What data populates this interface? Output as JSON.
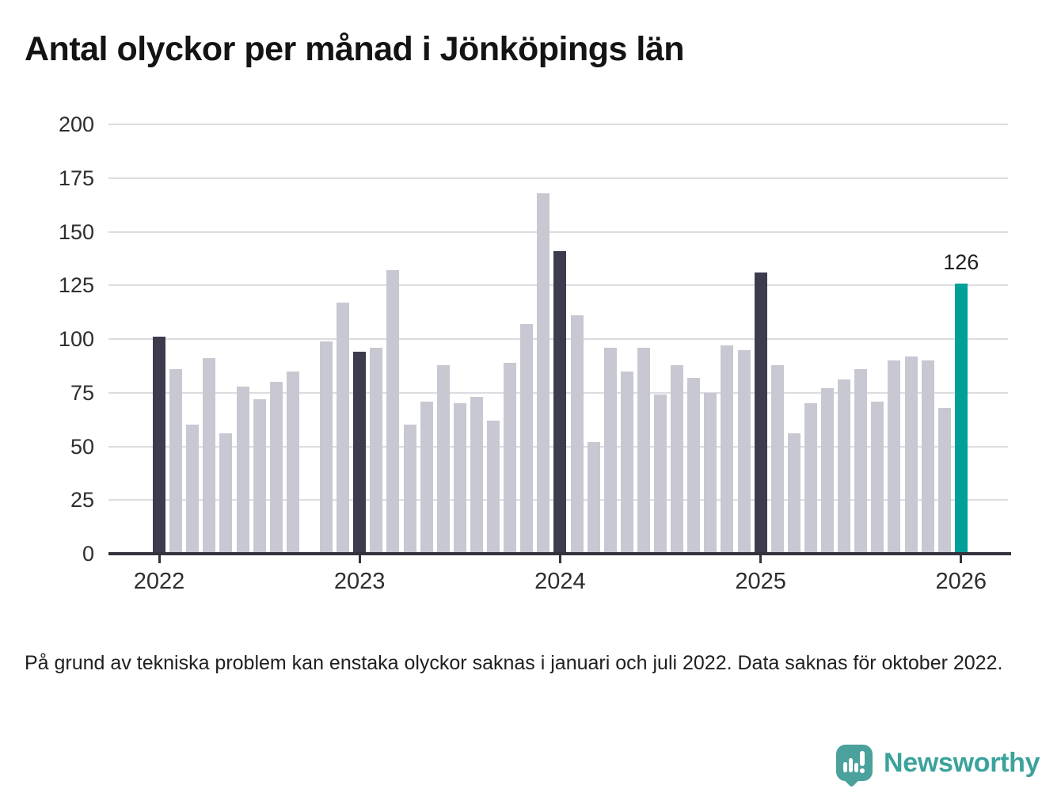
{
  "title": "Antal olyckor per månad i Jönköpings län",
  "footnote": "På grund av tekniska problem kan enstaka olyckor saknas i januari och juli 2022. Data saknas för oktober 2022.",
  "logo": {
    "text": "Newsworthy",
    "icon": "newsworthy-speech-bubble-barchart-icon"
  },
  "colors": {
    "bar_default": "#c8c8d2",
    "bar_january": "#3c3c4e",
    "bar_current": "#00a099",
    "gridline": "#dcdce1",
    "axis": "#33333e",
    "tick_text": "#2e2e2e"
  },
  "chart_data": {
    "type": "bar",
    "title": "Antal olyckor per månad i Jönköpings län",
    "ylabel": "",
    "xlabel": "",
    "ylim": [
      0,
      200
    ],
    "y_ticks": [
      0,
      25,
      50,
      75,
      100,
      125,
      150,
      175,
      200
    ],
    "grid": "horizontal",
    "x_ticks": [
      {
        "label": "2022",
        "month_index": 0
      },
      {
        "label": "2023",
        "month_index": 12
      },
      {
        "label": "2024",
        "month_index": 24
      },
      {
        "label": "2025",
        "month_index": 36
      },
      {
        "label": "2026",
        "month_index": 48
      }
    ],
    "annotation": {
      "label": "126",
      "month_index": 48
    },
    "point_format": [
      "month",
      "value",
      "color_role"
    ],
    "series": [
      {
        "name": "Antal olyckor per månad",
        "points": [
          [
            "2022-01",
            101,
            "january"
          ],
          [
            "2022-02",
            86,
            "default"
          ],
          [
            "2022-03",
            60,
            "default"
          ],
          [
            "2022-04",
            91,
            "default"
          ],
          [
            "2022-05",
            56,
            "default"
          ],
          [
            "2022-06",
            78,
            "default"
          ],
          [
            "2022-07",
            72,
            "default"
          ],
          [
            "2022-08",
            80,
            "default"
          ],
          [
            "2022-09",
            85,
            "default"
          ],
          [
            "2022-10",
            null,
            "missing"
          ],
          [
            "2022-11",
            99,
            "default"
          ],
          [
            "2022-12",
            117,
            "default"
          ],
          [
            "2023-01",
            94,
            "january"
          ],
          [
            "2023-02",
            96,
            "default"
          ],
          [
            "2023-03",
            132,
            "default"
          ],
          [
            "2023-04",
            60,
            "default"
          ],
          [
            "2023-05",
            71,
            "default"
          ],
          [
            "2023-06",
            88,
            "default"
          ],
          [
            "2023-07",
            70,
            "default"
          ],
          [
            "2023-08",
            73,
            "default"
          ],
          [
            "2023-09",
            62,
            "default"
          ],
          [
            "2023-10",
            89,
            "default"
          ],
          [
            "2023-11",
            107,
            "default"
          ],
          [
            "2023-12",
            168,
            "default"
          ],
          [
            "2024-01",
            141,
            "january"
          ],
          [
            "2024-02",
            111,
            "default"
          ],
          [
            "2024-03",
            52,
            "default"
          ],
          [
            "2024-04",
            96,
            "default"
          ],
          [
            "2024-05",
            85,
            "default"
          ],
          [
            "2024-06",
            96,
            "default"
          ],
          [
            "2024-07",
            74,
            "default"
          ],
          [
            "2024-08",
            88,
            "default"
          ],
          [
            "2024-09",
            82,
            "default"
          ],
          [
            "2024-10",
            75,
            "default"
          ],
          [
            "2024-11",
            97,
            "default"
          ],
          [
            "2024-12",
            95,
            "default"
          ],
          [
            "2025-01",
            131,
            "january"
          ],
          [
            "2025-02",
            88,
            "default"
          ],
          [
            "2025-03",
            56,
            "default"
          ],
          [
            "2025-04",
            70,
            "default"
          ],
          [
            "2025-05",
            77,
            "default"
          ],
          [
            "2025-06",
            81,
            "default"
          ],
          [
            "2025-07",
            86,
            "default"
          ],
          [
            "2025-08",
            71,
            "default"
          ],
          [
            "2025-09",
            90,
            "default"
          ],
          [
            "2025-10",
            92,
            "default"
          ],
          [
            "2025-11",
            90,
            "default"
          ],
          [
            "2025-12",
            68,
            "default"
          ],
          [
            "2026-01",
            126,
            "current"
          ]
        ]
      }
    ]
  }
}
